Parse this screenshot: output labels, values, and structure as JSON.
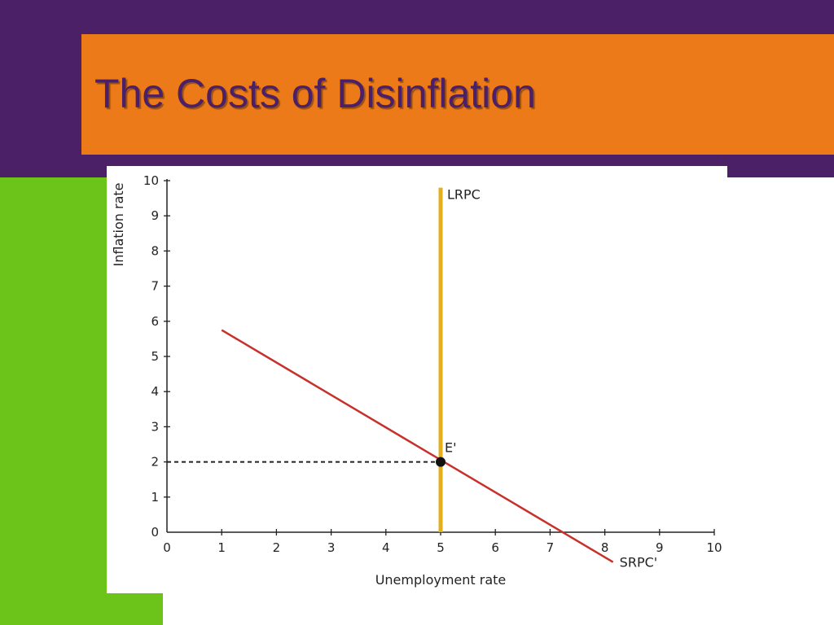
{
  "slide": {
    "title": "The Costs of Disinflation",
    "colors": {
      "frame": "#4b2066",
      "accent_green": "#6cc319",
      "title_bar": "#ec7a18",
      "title_text": "#4b2066"
    }
  },
  "chart_data": {
    "type": "line",
    "xlabel": "Unemployment rate",
    "ylabel": "Inflation rate",
    "xlim": [
      0,
      10
    ],
    "ylim": [
      0,
      10
    ],
    "x_ticks": [
      0,
      1,
      2,
      3,
      4,
      5,
      6,
      7,
      8,
      9,
      10
    ],
    "y_ticks": [
      0,
      1,
      2,
      3,
      4,
      5,
      6,
      7,
      8,
      9,
      10
    ],
    "grid": false,
    "series": [
      {
        "name": "LRPC",
        "color": "#e3b01c",
        "x": [
          5,
          5
        ],
        "y": [
          0,
          9.8
        ]
      },
      {
        "name": "SRPC'",
        "color": "#c8312b",
        "x": [
          1,
          8.15
        ],
        "y": [
          5.75,
          -0.85
        ]
      }
    ],
    "points": [
      {
        "label": "E'",
        "x": 5,
        "y": 2
      }
    ],
    "reference_lines": [
      {
        "style": "dashed",
        "from": [
          0,
          2
        ],
        "to": [
          5,
          2
        ]
      }
    ]
  }
}
